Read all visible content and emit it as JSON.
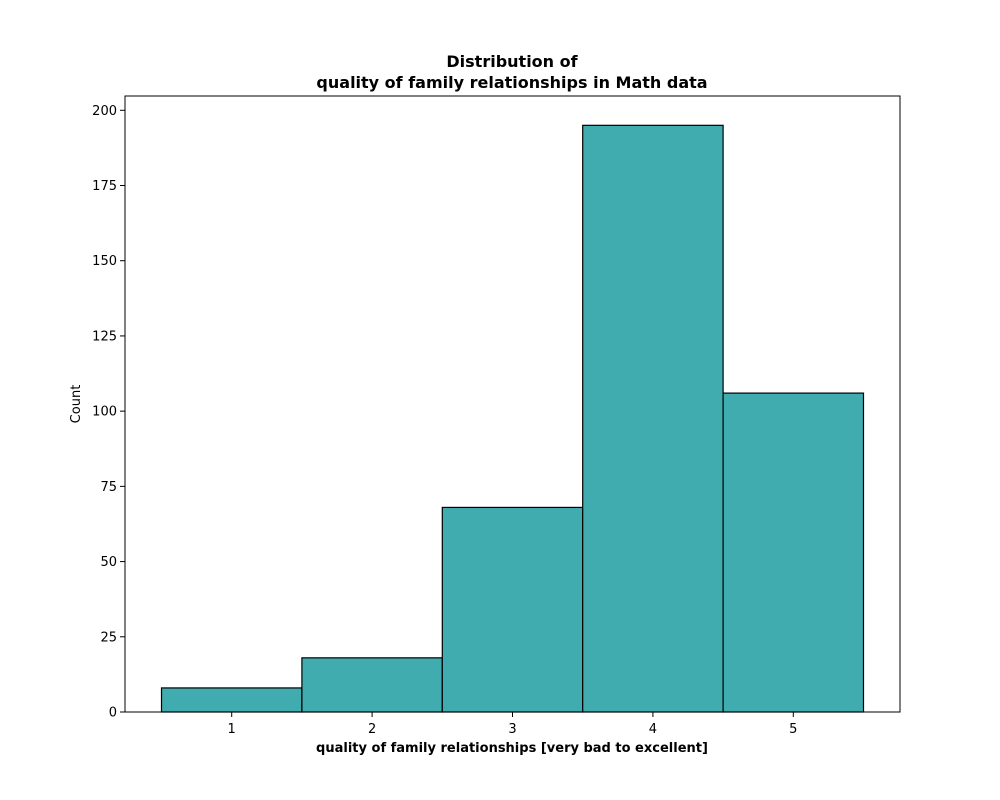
{
  "chart_data": {
    "type": "bar",
    "title": [
      "Distribution of",
      "quality of family relationships in Math data"
    ],
    "xlabel": "quality of family relationships [very bad to excellent]",
    "ylabel": "Count",
    "categories": [
      "1",
      "2",
      "3",
      "4",
      "5"
    ],
    "values": [
      8,
      18,
      68,
      195,
      106
    ],
    "xlim": [
      0.24,
      5.76
    ],
    "ylim": [
      0,
      204.75
    ],
    "yticks": [
      0,
      25,
      50,
      75,
      100,
      125,
      150,
      175,
      200
    ],
    "grid": false,
    "legend": "none",
    "colors": {
      "bar_fill": "#40acb0",
      "bar_edge": "#000000"
    }
  }
}
